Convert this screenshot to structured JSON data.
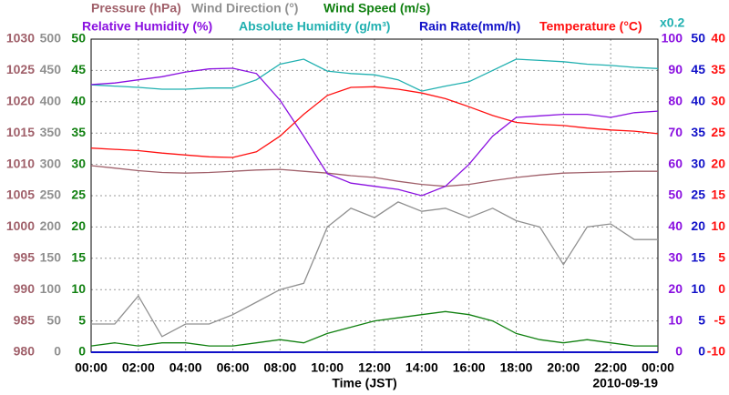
{
  "chart_data": {
    "type": "line",
    "xlabel": "Time (JST)",
    "date": "2010-09-19",
    "scale_note": "x0.2",
    "xlim": [
      0,
      24
    ],
    "xticks": [
      {
        "value": 0,
        "label": "00:00"
      },
      {
        "value": 2,
        "label": "02:00"
      },
      {
        "value": 4,
        "label": "04:00"
      },
      {
        "value": 6,
        "label": "06:00"
      },
      {
        "value": 8,
        "label": "08:00"
      },
      {
        "value": 10,
        "label": "10:00"
      },
      {
        "value": 12,
        "label": "12:00"
      },
      {
        "value": 14,
        "label": "14:00"
      },
      {
        "value": 16,
        "label": "16:00"
      },
      {
        "value": 18,
        "label": "18:00"
      },
      {
        "value": 20,
        "label": "20:00"
      },
      {
        "value": 22,
        "label": "22:00"
      },
      {
        "value": 24,
        "label": "00:00"
      }
    ],
    "grid": true,
    "axes": {
      "pressure": {
        "side": "left",
        "color": "#a0606a",
        "lim": [
          980,
          1030
        ],
        "ticks": [
          980,
          985,
          990,
          995,
          1000,
          1005,
          1010,
          1015,
          1020,
          1025,
          1030
        ]
      },
      "direction": {
        "side": "left",
        "color": "#909090",
        "lim": [
          0,
          500
        ],
        "ticks": [
          0,
          50,
          100,
          150,
          200,
          250,
          300,
          350,
          400,
          450,
          500
        ]
      },
      "speed": {
        "side": "left",
        "color": "#108010",
        "lim": [
          0,
          50
        ],
        "ticks": [
          0,
          5,
          10,
          15,
          20,
          25,
          30,
          35,
          40,
          45,
          50
        ]
      },
      "humidity": {
        "side": "right",
        "color": "#8a10e0",
        "lim": [
          0,
          100
        ],
        "ticks": [
          0,
          10,
          20,
          30,
          40,
          50,
          60,
          70,
          80,
          90,
          100
        ]
      },
      "rain": {
        "side": "right",
        "color": "#1010c8",
        "lim": [
          0,
          50
        ],
        "ticks": [
          0,
          5,
          10,
          15,
          20,
          25,
          30,
          35,
          40,
          45,
          50
        ]
      },
      "temperature": {
        "side": "right",
        "color": "#ff1010",
        "lim": [
          -10,
          40
        ],
        "ticks": [
          -10,
          -5,
          0,
          5,
          10,
          15,
          20,
          25,
          30,
          35,
          40
        ]
      }
    },
    "x": [
      0,
      1,
      2,
      3,
      4,
      5,
      6,
      7,
      8,
      9,
      10,
      11,
      12,
      13,
      14,
      15,
      16,
      17,
      18,
      19,
      20,
      21,
      22,
      23,
      24
    ],
    "series": [
      {
        "name": "Wind Direction (°)",
        "color": "#909090",
        "axis": "direction",
        "values": [
          45,
          45,
          90,
          25,
          45,
          45,
          60,
          80,
          100,
          110,
          200,
          230,
          215,
          240,
          225,
          230,
          215,
          230,
          210,
          200,
          140,
          200,
          205,
          180,
          180
        ]
      },
      {
        "name": "Wind Speed (m/s)",
        "color": "#108010",
        "axis": "speed",
        "values": [
          1,
          1.5,
          1,
          1.5,
          1.5,
          1,
          1,
          1.5,
          2,
          1.5,
          3,
          4,
          5,
          5.5,
          6,
          6.5,
          6,
          5,
          3,
          2,
          1.5,
          2,
          1.5,
          1,
          1
        ]
      },
      {
        "name": "Pressure (hPa)",
        "color": "#a0606a",
        "axis": "pressure",
        "values": [
          1009.8,
          1009.4,
          1009,
          1008.7,
          1008.6,
          1008.7,
          1008.9,
          1009.1,
          1009.2,
          1008.9,
          1008.6,
          1008.2,
          1007.9,
          1007.3,
          1006.8,
          1006.5,
          1006.8,
          1007.4,
          1007.9,
          1008.3,
          1008.6,
          1008.7,
          1008.8,
          1008.9,
          1008.9
        ]
      },
      {
        "name": "Absolute Humidity (g/m³)",
        "color": "#20b0b0",
        "axis": "rain",
        "values": [
          42.7,
          42.5,
          42.3,
          42,
          42,
          42.2,
          42.2,
          43.5,
          46,
          46.8,
          44.9,
          44.5,
          44.3,
          43.5,
          41.7,
          42.5,
          43.2,
          45,
          46.8,
          46.6,
          46.4,
          46,
          45.8,
          45.5,
          45.3
        ]
      },
      {
        "name": "Relative Humidity (%)",
        "color": "#8a10e0",
        "axis": "humidity",
        "values": [
          85.5,
          86,
          87,
          88,
          89.5,
          90.5,
          90.7,
          89,
          80.5,
          69,
          57,
          54,
          53,
          52,
          50,
          53,
          60,
          69,
          75,
          75.5,
          76,
          76,
          75,
          76.5,
          77
        ]
      },
      {
        "name": "Temperature (°C)",
        "color": "#ff1010",
        "axis": "temperature",
        "values": [
          22.6,
          22.4,
          22.2,
          21.8,
          21.5,
          21.2,
          21.1,
          22,
          24.5,
          28,
          31,
          32.3,
          32.4,
          32,
          31.4,
          30.5,
          29.2,
          27.8,
          26.7,
          26.4,
          26.2,
          25.8,
          25.5,
          25.3,
          24.9
        ]
      },
      {
        "name": "Rain Rate(mm/h)",
        "color": "#1010c8",
        "axis": "rain",
        "values": [
          0,
          0,
          0,
          0,
          0,
          0,
          0,
          0,
          0,
          0,
          0,
          0,
          0,
          0,
          0,
          0,
          0,
          0,
          0,
          0,
          0,
          0,
          0,
          0,
          0
        ]
      }
    ]
  }
}
